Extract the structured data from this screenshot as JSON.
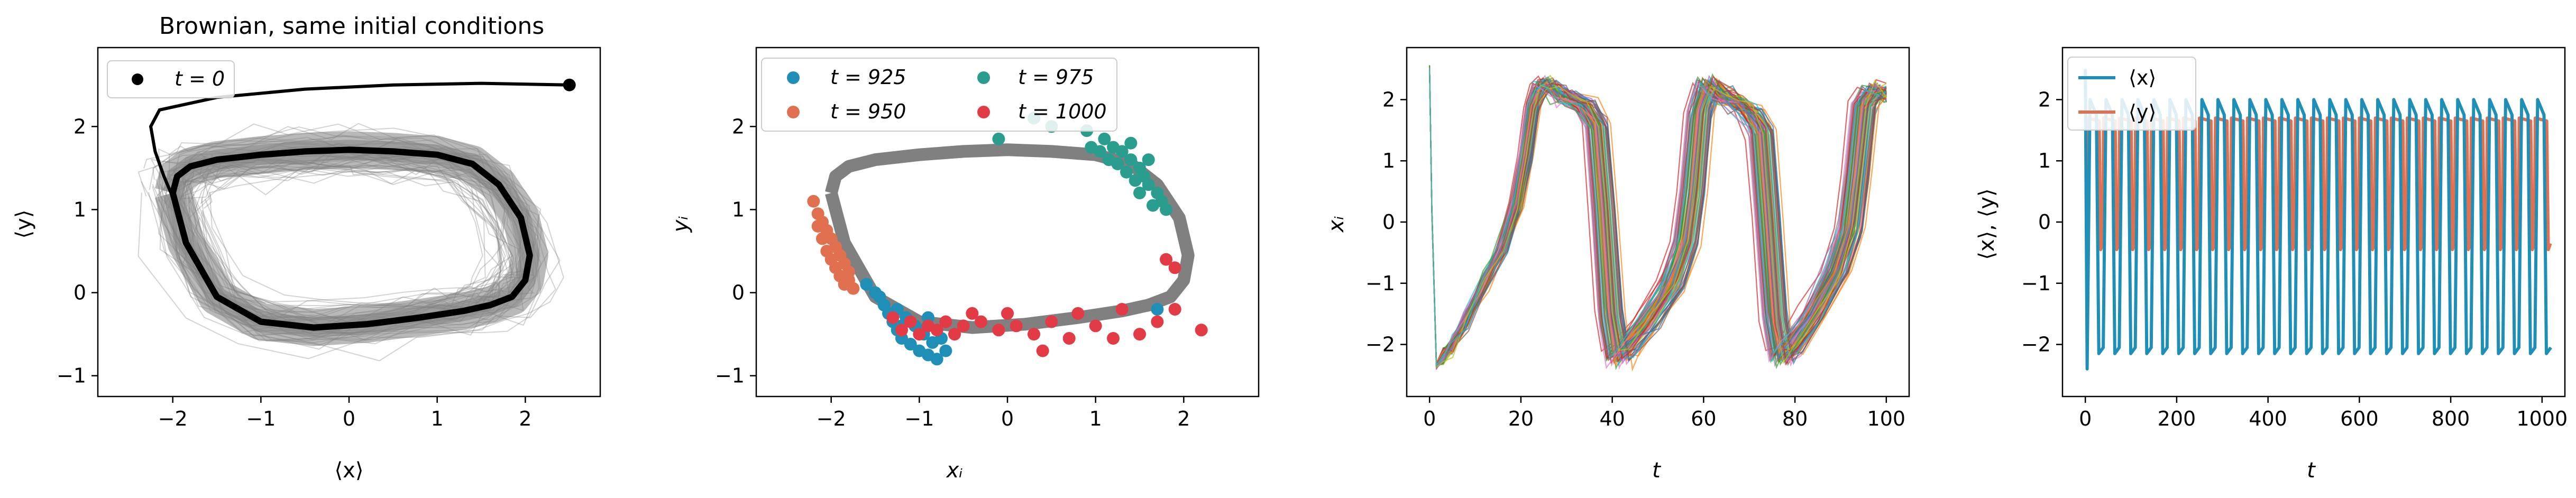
{
  "chart_data": [
    {
      "type": "line",
      "title": "Brownian, same initial conditions",
      "xlabel": "⟨x⟩",
      "ylabel": "⟨y⟩",
      "xlim": [
        -2.85,
        2.85
      ],
      "ylim": [
        -1.25,
        2.95
      ],
      "xticks": [
        -2,
        -1,
        0,
        1,
        2
      ],
      "yticks": [
        -1,
        0,
        1,
        2
      ],
      "grid": false,
      "legend": {
        "placement": "top-left",
        "entries": [
          {
            "name": "t = 0",
            "color": "#000000",
            "marker": "circle"
          }
        ]
      },
      "colors": {
        "trajectories": "#808080",
        "mean": "#000000"
      },
      "initial_point": {
        "x": 2.5,
        "y": 2.5
      },
      "transient": {
        "x": [
          2.5,
          1.5,
          0.5,
          -0.5,
          -1.5,
          -2.15,
          -2.25,
          -2.2,
          -2.1,
          -2.0
        ],
        "y": [
          2.5,
          2.52,
          2.5,
          2.45,
          2.35,
          2.2,
          2.0,
          1.7,
          1.4,
          1.15
        ]
      },
      "limit_cycle": {
        "x": [
          -2.0,
          -1.95,
          -1.8,
          -1.5,
          -1.0,
          -0.5,
          0.0,
          0.5,
          1.0,
          1.4,
          1.7,
          1.95,
          2.05,
          2.0,
          1.85,
          1.6,
          1.3,
          0.8,
          0.2,
          -0.4,
          -1.0,
          -1.5,
          -1.85,
          -2.0
        ],
        "y": [
          1.2,
          1.4,
          1.52,
          1.6,
          1.66,
          1.7,
          1.72,
          1.7,
          1.66,
          1.55,
          1.3,
          0.9,
          0.45,
          0.15,
          -0.05,
          -0.15,
          -0.22,
          -0.3,
          -0.38,
          -0.42,
          -0.35,
          -0.05,
          0.6,
          1.2
        ]
      },
      "noise_band": "grey cloud of ~100 Brownian trajectories around the limit cycle"
    },
    {
      "type": "scatter",
      "xlabel": "xᵢ",
      "ylabel": "yᵢ",
      "xlim": [
        -2.85,
        2.85
      ],
      "ylim": [
        -1.25,
        2.95
      ],
      "xticks": [
        -2,
        -1,
        0,
        1,
        2
      ],
      "yticks": [
        -1,
        0,
        1,
        2
      ],
      "grid": false,
      "legend": {
        "placement": "top-left",
        "columns": 2
      },
      "series": [
        {
          "name": "t = 925",
          "color": "#1f8fb8",
          "points": [
            [
              -1.6,
              0.1
            ],
            [
              -1.5,
              0.0
            ],
            [
              -1.4,
              -0.15
            ],
            [
              -1.35,
              -0.25
            ],
            [
              -1.3,
              -0.35
            ],
            [
              -1.25,
              -0.45
            ],
            [
              -1.2,
              -0.55
            ],
            [
              -1.1,
              -0.62
            ],
            [
              -1.0,
              -0.7
            ],
            [
              -0.9,
              -0.75
            ],
            [
              -0.8,
              -0.8
            ],
            [
              -0.7,
              -0.7
            ],
            [
              -1.15,
              -0.3
            ],
            [
              -1.05,
              -0.4
            ],
            [
              -0.95,
              -0.5
            ],
            [
              -1.45,
              -0.05
            ],
            [
              -1.25,
              -0.2
            ],
            [
              -0.85,
              -0.6
            ],
            [
              -0.75,
              -0.55
            ],
            [
              1.7,
              -0.2
            ],
            [
              -1.0,
              -0.45
            ],
            [
              -1.2,
              -0.4
            ],
            [
              -0.9,
              -0.3
            ]
          ]
        },
        {
          "name": "t = 950",
          "color": "#e0704f",
          "points": [
            [
              -2.2,
              1.1
            ],
            [
              -2.15,
              0.95
            ],
            [
              -2.1,
              0.85
            ],
            [
              -2.05,
              0.75
            ],
            [
              -2.0,
              0.65
            ],
            [
              -1.95,
              0.55
            ],
            [
              -1.9,
              0.45
            ],
            [
              -1.85,
              0.35
            ],
            [
              -1.8,
              0.25
            ],
            [
              -2.05,
              0.5
            ],
            [
              -1.95,
              0.3
            ],
            [
              -1.9,
              0.2
            ],
            [
              -1.85,
              0.1
            ],
            [
              -2.1,
              0.65
            ],
            [
              -2.0,
              0.4
            ],
            [
              -1.8,
              0.15
            ],
            [
              -2.15,
              0.8
            ],
            [
              -1.75,
              0.05
            ]
          ]
        },
        {
          "name": "t = 975",
          "color": "#2a9d8f",
          "points": [
            [
              0.3,
              2.1
            ],
            [
              0.5,
              2.0
            ],
            [
              0.9,
              1.95
            ],
            [
              1.1,
              1.85
            ],
            [
              1.2,
              1.75
            ],
            [
              1.3,
              1.7
            ],
            [
              1.4,
              1.6
            ],
            [
              1.5,
              1.5
            ],
            [
              1.55,
              1.4
            ],
            [
              1.6,
              1.3
            ],
            [
              1.7,
              1.2
            ],
            [
              1.75,
              1.1
            ],
            [
              1.8,
              1.0
            ],
            [
              1.25,
              1.55
            ],
            [
              1.35,
              1.45
            ],
            [
              1.45,
              1.35
            ],
            [
              1.6,
              1.6
            ],
            [
              1.05,
              1.7
            ],
            [
              0.95,
              1.75
            ],
            [
              1.65,
              1.05
            ],
            [
              -0.1,
              1.85
            ],
            [
              1.5,
              1.2
            ],
            [
              1.15,
              1.6
            ],
            [
              1.4,
              1.8
            ]
          ]
        },
        {
          "name": "t = 1000",
          "color": "#e23b46",
          "points": [
            [
              -1.3,
              -0.3
            ],
            [
              -1.1,
              -0.35
            ],
            [
              -0.9,
              -0.4
            ],
            [
              -0.7,
              -0.35
            ],
            [
              -0.5,
              -0.4
            ],
            [
              -0.3,
              -0.35
            ],
            [
              -0.1,
              -0.45
            ],
            [
              0.1,
              -0.4
            ],
            [
              0.3,
              -0.5
            ],
            [
              0.5,
              -0.35
            ],
            [
              0.7,
              -0.55
            ],
            [
              1.0,
              -0.4
            ],
            [
              1.2,
              -0.55
            ],
            [
              1.5,
              -0.5
            ],
            [
              1.7,
              -0.35
            ],
            [
              1.9,
              -0.2
            ],
            [
              2.2,
              -0.45
            ],
            [
              1.8,
              0.4
            ],
            [
              1.9,
              0.3
            ],
            [
              0.8,
              -0.25
            ],
            [
              -1.0,
              -0.5
            ],
            [
              -0.8,
              -0.45
            ],
            [
              -0.6,
              -0.5
            ],
            [
              -1.2,
              -0.45
            ],
            [
              0.0,
              -0.25
            ],
            [
              0.4,
              -0.7
            ],
            [
              1.3,
              -0.2
            ],
            [
              -0.4,
              -0.25
            ]
          ]
        }
      ],
      "limit_cycle_color": "#808080"
    },
    {
      "type": "line",
      "xlabel": "t",
      "ylabel": "xᵢ",
      "xlim": [
        -5,
        105
      ],
      "ylim": [
        -2.85,
        2.85
      ],
      "xticks": [
        0,
        20,
        40,
        60,
        80,
        100
      ],
      "yticks": [
        -2,
        -1,
        0,
        1,
        2
      ],
      "grid": false,
      "series_count": 100,
      "base_path": {
        "t": [
          0,
          0.5,
          1.5,
          3,
          5,
          8,
          12,
          16,
          19,
          21,
          22.5,
          24,
          26,
          28,
          30,
          34,
          36.5,
          38,
          39.5,
          41,
          43,
          48,
          53,
          56,
          57.5,
          59,
          61,
          64,
          67,
          70,
          72.5,
          74,
          75.5,
          77,
          79,
          84,
          89,
          92,
          93.5,
          95,
          97,
          100
        ],
        "x": [
          2.5,
          0.2,
          -2.35,
          -2.2,
          -2.0,
          -1.6,
          -1.0,
          -0.4,
          0.3,
          1.1,
          1.9,
          2.2,
          2.25,
          2.1,
          2.05,
          1.9,
          1.6,
          0.2,
          -1.5,
          -2.2,
          -2.05,
          -1.6,
          -1.0,
          -0.3,
          0.5,
          1.8,
          2.25,
          2.05,
          1.95,
          1.8,
          1.5,
          0.0,
          -1.6,
          -2.2,
          -2.05,
          -1.5,
          -0.8,
          -0.1,
          0.8,
          1.9,
          2.15,
          2.1
        ]
      }
    },
    {
      "type": "line",
      "xlabel": "t",
      "ylabel": "⟨x⟩, ⟨y⟩",
      "xlim": [
        -50,
        1050
      ],
      "ylim": [
        -2.85,
        2.85
      ],
      "xticks": [
        0,
        200,
        400,
        600,
        800,
        1000
      ],
      "yticks": [
        -2,
        -1,
        0,
        1,
        2
      ],
      "grid": false,
      "legend": {
        "placement": "top-left"
      },
      "period": 35,
      "series": [
        {
          "name": "⟨x⟩",
          "color": "#1f8fb8",
          "min": -2.15,
          "max": 2.0,
          "initial": 2.5,
          "first_min": -2.4
        },
        {
          "name": "⟨y⟩",
          "color": "#e0704f",
          "min": -0.45,
          "max": 1.7,
          "initial": 2.5
        }
      ]
    }
  ]
}
